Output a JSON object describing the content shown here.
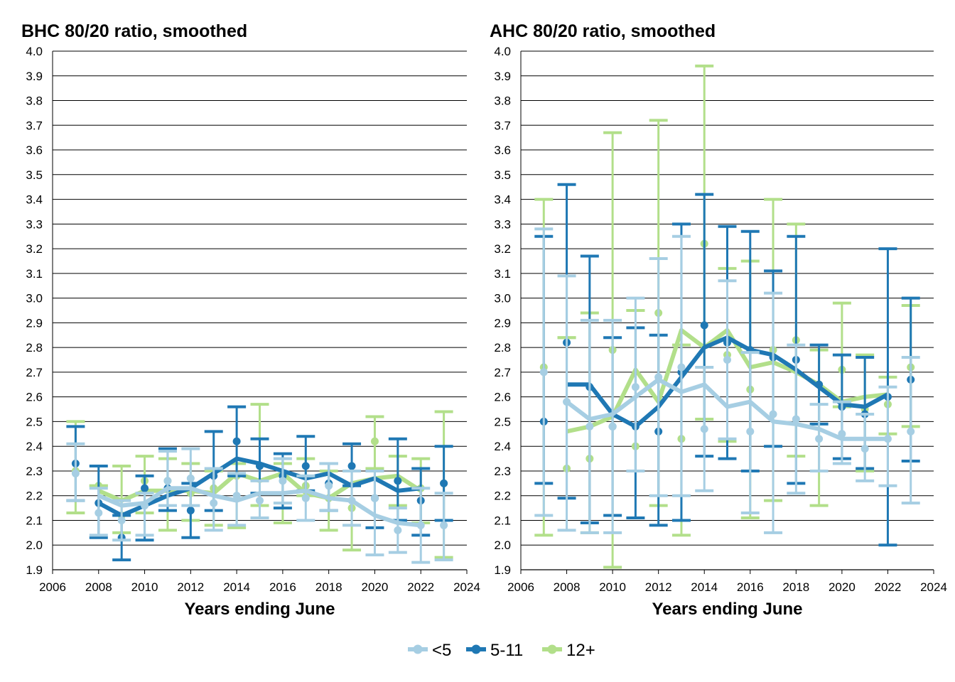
{
  "legend": {
    "items": [
      "<5",
      "5-11",
      "12+"
    ]
  },
  "colors": {
    "under5": "#a6cee3",
    "age5_11": "#1f78b4",
    "age12plus": "#b2df8a"
  },
  "chart_data": [
    {
      "type": "line",
      "title": "BHC 80/20 ratio, smoothed",
      "xlabel": "Years ending June",
      "ylabel": "",
      "xlim": [
        2006,
        2024
      ],
      "ylim": [
        1.9,
        4.0
      ],
      "xticks": [
        "2006",
        "2008",
        "2010",
        "2012",
        "2014",
        "2016",
        "2018",
        "2020",
        "2022",
        "2024"
      ],
      "yticks": [
        "4.0",
        "3.9",
        "3.8",
        "3.7",
        "3.6",
        "3.5",
        "3.4",
        "3.3",
        "3.2",
        "3.1",
        "3.0",
        "2.9",
        "2.8",
        "2.7",
        "2.6",
        "2.5",
        "2.4",
        "2.3",
        "2.2",
        "2.1",
        "2.0",
        "1.9"
      ],
      "grid": "horizontal",
      "x": [
        2007,
        2008,
        2009,
        2010,
        2011,
        2012,
        2013,
        2014,
        2015,
        2016,
        2017,
        2018,
        2019,
        2020,
        2021,
        2022,
        2023
      ],
      "series": [
        {
          "name": "<5",
          "points": [
            2.29,
            2.13,
            2.1,
            2.16,
            2.26,
            2.27,
            2.17,
            2.2,
            2.18,
            2.26,
            2.19,
            2.24,
            2.18,
            2.19,
            2.06,
            2.08,
            2.08
          ],
          "smoothed": [
            null,
            2.2,
            2.16,
            2.17,
            2.23,
            2.23,
            2.2,
            2.18,
            2.21,
            2.21,
            2.22,
            2.19,
            2.18,
            2.12,
            2.09,
            2.08,
            null
          ],
          "lower": [
            2.18,
            2.04,
            2.02,
            2.04,
            2.16,
            2.16,
            2.06,
            2.08,
            2.11,
            2.17,
            2.1,
            2.14,
            2.08,
            1.96,
            1.97,
            1.93,
            1.94
          ],
          "upper": [
            2.41,
            2.23,
            2.18,
            2.21,
            2.38,
            2.39,
            2.31,
            2.29,
            2.26,
            2.35,
            2.28,
            2.33,
            2.3,
            2.3,
            2.15,
            2.23,
            2.21
          ]
        },
        {
          "name": "5-11",
          "points": [
            2.33,
            2.17,
            2.03,
            2.23,
            2.23,
            2.14,
            2.28,
            2.42,
            2.32,
            2.28,
            2.32,
            2.25,
            2.32,
            2.19,
            2.26,
            2.18,
            2.25
          ],
          "smoothed": [
            null,
            2.17,
            2.12,
            2.16,
            2.2,
            2.23,
            2.29,
            2.35,
            2.33,
            2.3,
            2.27,
            2.29,
            2.24,
            2.27,
            2.22,
            2.23,
            null
          ],
          "lower": [
            2.18,
            2.03,
            1.94,
            2.02,
            2.14,
            2.03,
            2.14,
            2.28,
            2.21,
            2.15,
            2.22,
            2.14,
            2.24,
            2.07,
            2.1,
            2.04,
            2.1
          ],
          "upper": [
            2.48,
            2.32,
            2.12,
            2.28,
            2.39,
            2.25,
            2.46,
            2.56,
            2.43,
            2.37,
            2.44,
            2.33,
            2.41,
            2.3,
            2.43,
            2.31,
            2.4
          ]
        },
        {
          "name": "12+",
          "points": [
            2.3,
            2.24,
            2.12,
            2.26,
            2.26,
            2.21,
            2.23,
            2.28,
            2.32,
            2.28,
            2.24,
            2.19,
            2.15,
            2.42,
            2.26,
            2.23,
            2.25
          ],
          "smoothed": [
            null,
            2.22,
            2.18,
            2.22,
            2.22,
            2.22,
            2.21,
            2.29,
            2.26,
            2.29,
            2.21,
            2.19,
            2.25,
            2.27,
            2.28,
            2.22,
            null
          ],
          "lower": [
            2.13,
            2.24,
            2.05,
            2.13,
            2.06,
            2.1,
            2.08,
            2.07,
            2.16,
            2.09,
            2.2,
            2.06,
            1.98,
            2.31,
            2.16,
            2.09,
            1.95
          ],
          "upper": [
            2.5,
            2.24,
            2.32,
            2.36,
            2.35,
            2.33,
            2.3,
            2.33,
            2.57,
            2.33,
            2.35,
            2.3,
            2.3,
            2.52,
            2.36,
            2.35,
            2.54
          ]
        }
      ]
    },
    {
      "type": "line",
      "title": "AHC 80/20 ratio, smoothed",
      "xlabel": "Years ending June",
      "ylabel": "",
      "xlim": [
        2006,
        2024
      ],
      "ylim": [
        1.9,
        4.0
      ],
      "xticks": [
        "2006",
        "2008",
        "2010",
        "2012",
        "2014",
        "2016",
        "2018",
        "2020",
        "2022",
        "2024"
      ],
      "yticks": [
        "4.0",
        "3.9",
        "3.8",
        "3.7",
        "3.6",
        "3.5",
        "3.4",
        "3.3",
        "3.2",
        "3.1",
        "3.0",
        "2.9",
        "2.8",
        "2.7",
        "2.6",
        "2.5",
        "2.4",
        "2.3",
        "2.2",
        "2.1",
        "2.0",
        "1.9"
      ],
      "grid": "horizontal",
      "x": [
        2007,
        2008,
        2009,
        2010,
        2011,
        2012,
        2013,
        2014,
        2015,
        2016,
        2017,
        2018,
        2019,
        2020,
        2021,
        2022,
        2023
      ],
      "series": [
        {
          "name": "<5",
          "points": [
            2.7,
            2.58,
            2.48,
            2.48,
            2.64,
            2.68,
            2.72,
            2.47,
            2.75,
            2.46,
            2.53,
            2.51,
            2.43,
            2.45,
            2.39,
            2.43,
            2.46
          ],
          "smoothed": [
            null,
            2.58,
            2.51,
            2.53,
            2.6,
            2.67,
            2.62,
            2.65,
            2.56,
            2.58,
            2.5,
            2.49,
            2.47,
            2.43,
            2.43,
            2.43,
            null
          ],
          "lower": [
            2.12,
            2.06,
            2.05,
            2.05,
            2.3,
            2.2,
            2.2,
            2.22,
            2.43,
            2.13,
            2.05,
            2.21,
            2.3,
            2.33,
            2.26,
            2.24,
            2.17
          ],
          "upper": [
            3.28,
            3.09,
            2.91,
            2.91,
            3.0,
            3.16,
            3.25,
            2.72,
            3.07,
            2.78,
            3.02,
            2.81,
            2.57,
            2.58,
            2.53,
            2.64,
            2.76
          ]
        },
        {
          "name": "5-11",
          "points": [
            2.5,
            2.82,
            2.64,
            2.48,
            2.48,
            2.46,
            2.7,
            2.89,
            2.82,
            2.79,
            2.76,
            2.75,
            2.65,
            2.56,
            2.53,
            2.6,
            2.67
          ],
          "smoothed": [
            null,
            2.65,
            2.65,
            2.53,
            2.48,
            2.56,
            2.68,
            2.8,
            2.84,
            2.79,
            2.77,
            2.71,
            2.64,
            2.57,
            2.56,
            2.61,
            null
          ],
          "lower": [
            2.25,
            2.19,
            2.09,
            2.12,
            2.11,
            2.08,
            2.1,
            2.36,
            2.35,
            2.3,
            2.4,
            2.25,
            2.49,
            2.35,
            2.31,
            2.0,
            2.34
          ],
          "upper": [
            3.25,
            3.46,
            3.17,
            2.84,
            2.88,
            2.85,
            3.3,
            3.42,
            3.29,
            3.27,
            3.11,
            3.25,
            2.81,
            2.77,
            2.76,
            3.2,
            3.0
          ]
        },
        {
          "name": "12+",
          "points": [
            2.72,
            2.31,
            2.35,
            2.79,
            2.4,
            2.94,
            2.43,
            3.22,
            2.77,
            2.63,
            2.79,
            2.83,
            2.65,
            2.71,
            2.55,
            2.57,
            2.72
          ],
          "smoothed": [
            null,
            2.46,
            2.48,
            2.52,
            2.71,
            2.58,
            2.87,
            2.8,
            2.87,
            2.72,
            2.74,
            2.7,
            2.65,
            2.58,
            2.6,
            2.61,
            null
          ],
          "lower": [
            2.04,
            2.84,
            2.05,
            1.91,
            2.95,
            2.16,
            2.04,
            2.51,
            2.42,
            2.11,
            2.18,
            2.36,
            2.16,
            2.56,
            2.3,
            2.45,
            2.48
          ],
          "upper": [
            3.4,
            2.84,
            2.94,
            3.67,
            2.95,
            3.72,
            2.81,
            3.94,
            3.12,
            3.15,
            3.4,
            3.3,
            2.79,
            2.98,
            2.77,
            2.68,
            2.97
          ]
        }
      ]
    }
  ]
}
